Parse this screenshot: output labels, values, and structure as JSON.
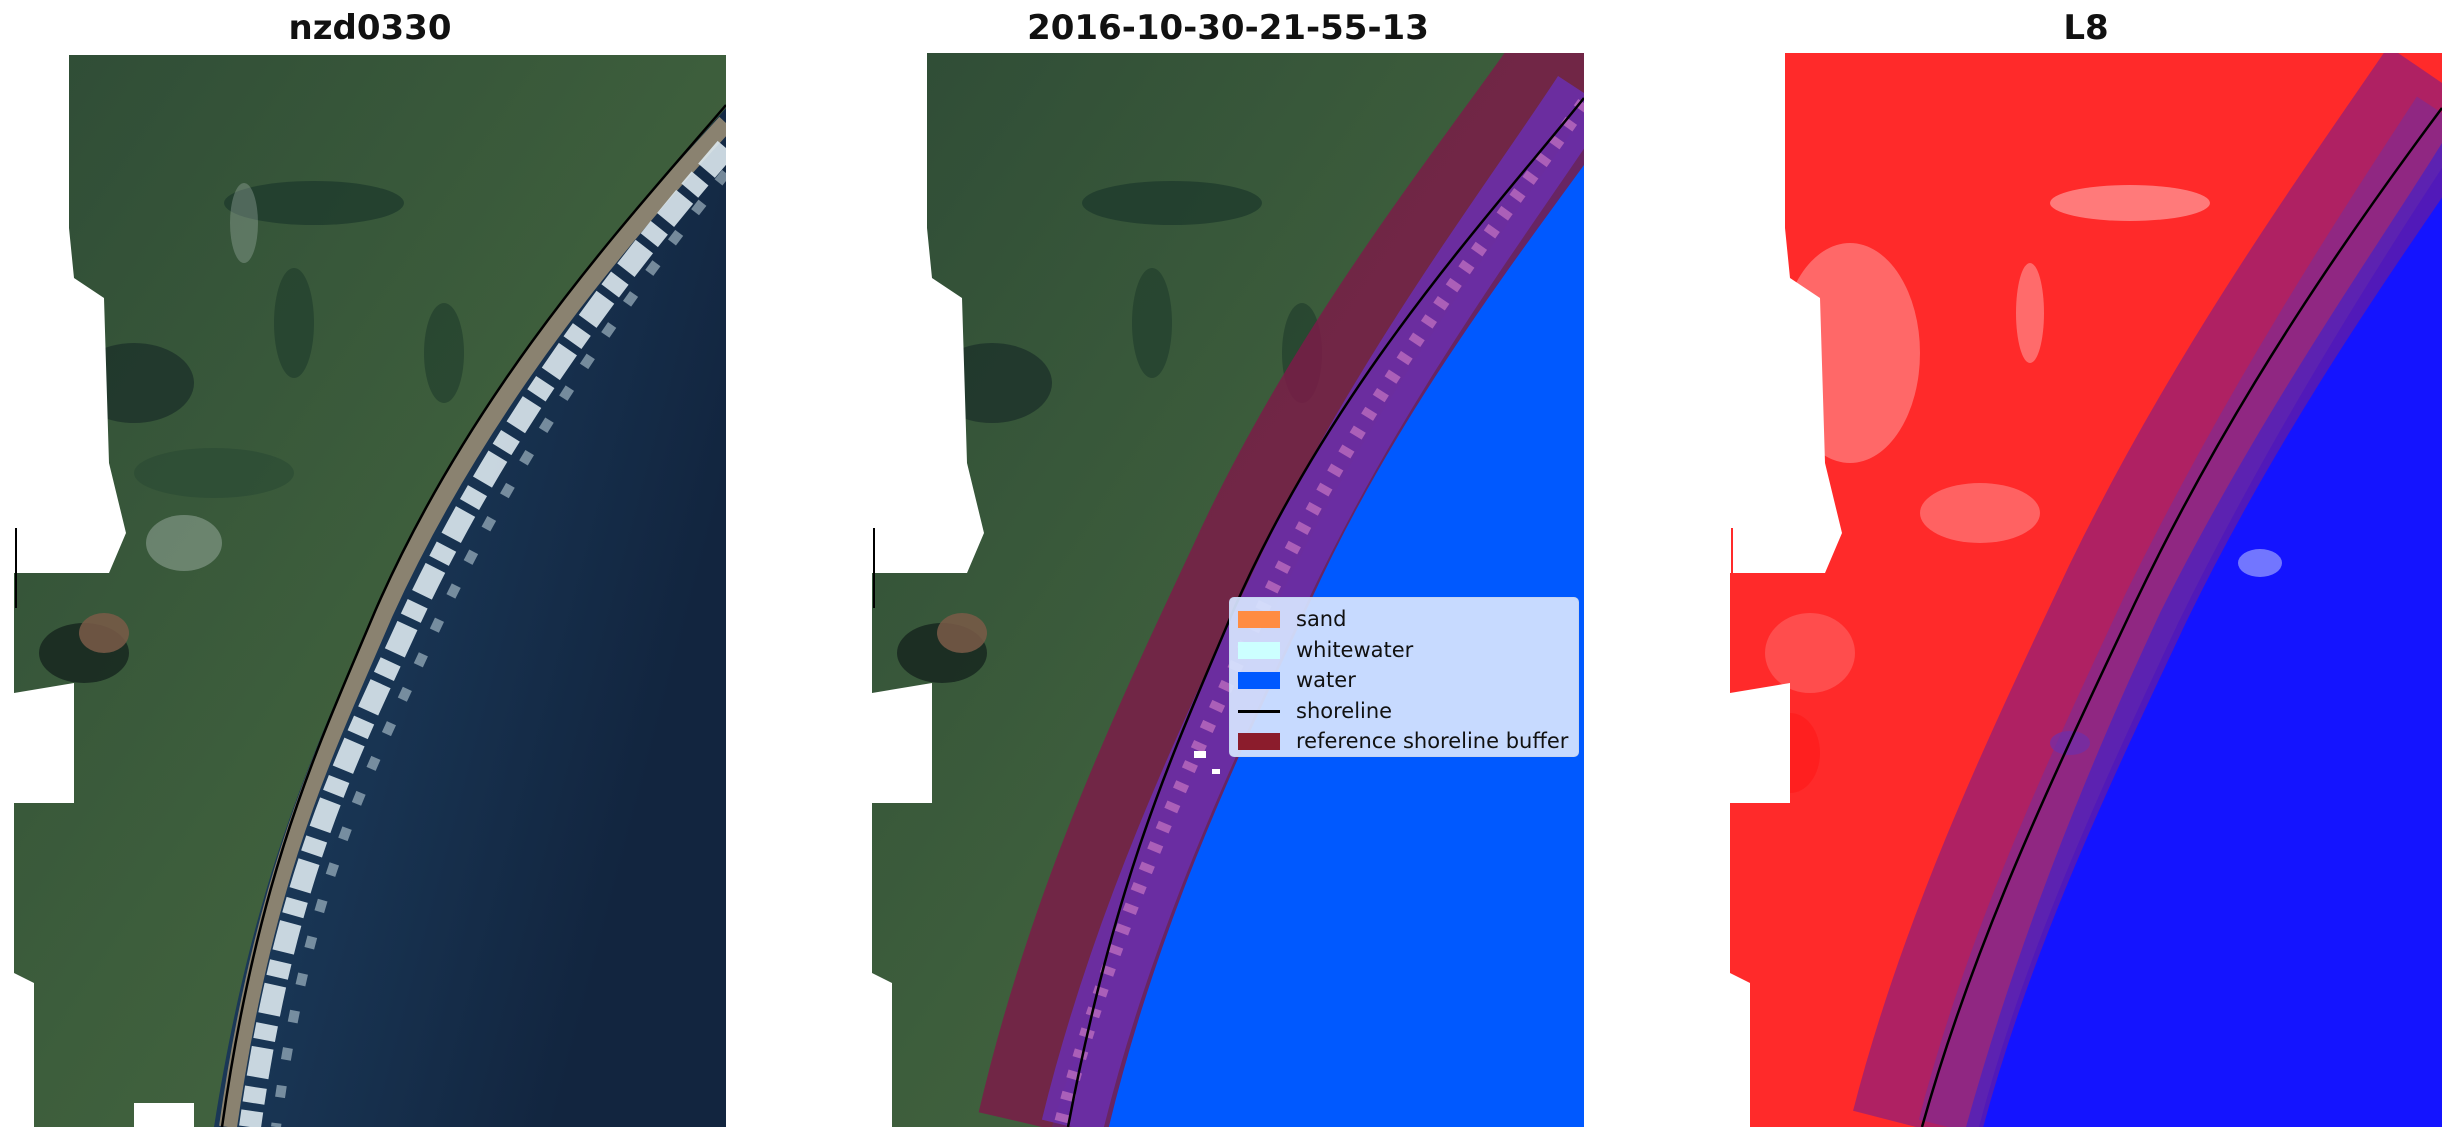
{
  "panels": [
    {
      "title": "nzd0330",
      "kind": "rgb"
    },
    {
      "title": "2016-10-30-21-55-13",
      "kind": "classified"
    },
    {
      "title": "L8",
      "kind": "index"
    }
  ],
  "legend": {
    "items": [
      {
        "label": "sand",
        "color": "#ff8c42",
        "kind": "patch"
      },
      {
        "label": "whitewater",
        "color": "#ccffff",
        "kind": "patch"
      },
      {
        "label": "water",
        "color": "#0059ff",
        "kind": "patch"
      },
      {
        "label": "shoreline",
        "color": "#000000",
        "kind": "line"
      },
      {
        "label": "reference shoreline buffer",
        "color": "#8b1c2c",
        "kind": "patch"
      }
    ]
  },
  "colors": {
    "land_dark": "#1e3a2c",
    "land": "#3a5a3a",
    "beach": "#8a8270",
    "sea_near": "#2a5a78",
    "sea_far": "#12253f",
    "surf": "#dce8ee",
    "class_water": "#0059ff",
    "class_mixed": "#6a2fa8",
    "buffer": "#7a1c48",
    "index_land": "#ff2a2a",
    "index_water": "#1414ff",
    "shoreline": "#000000"
  }
}
